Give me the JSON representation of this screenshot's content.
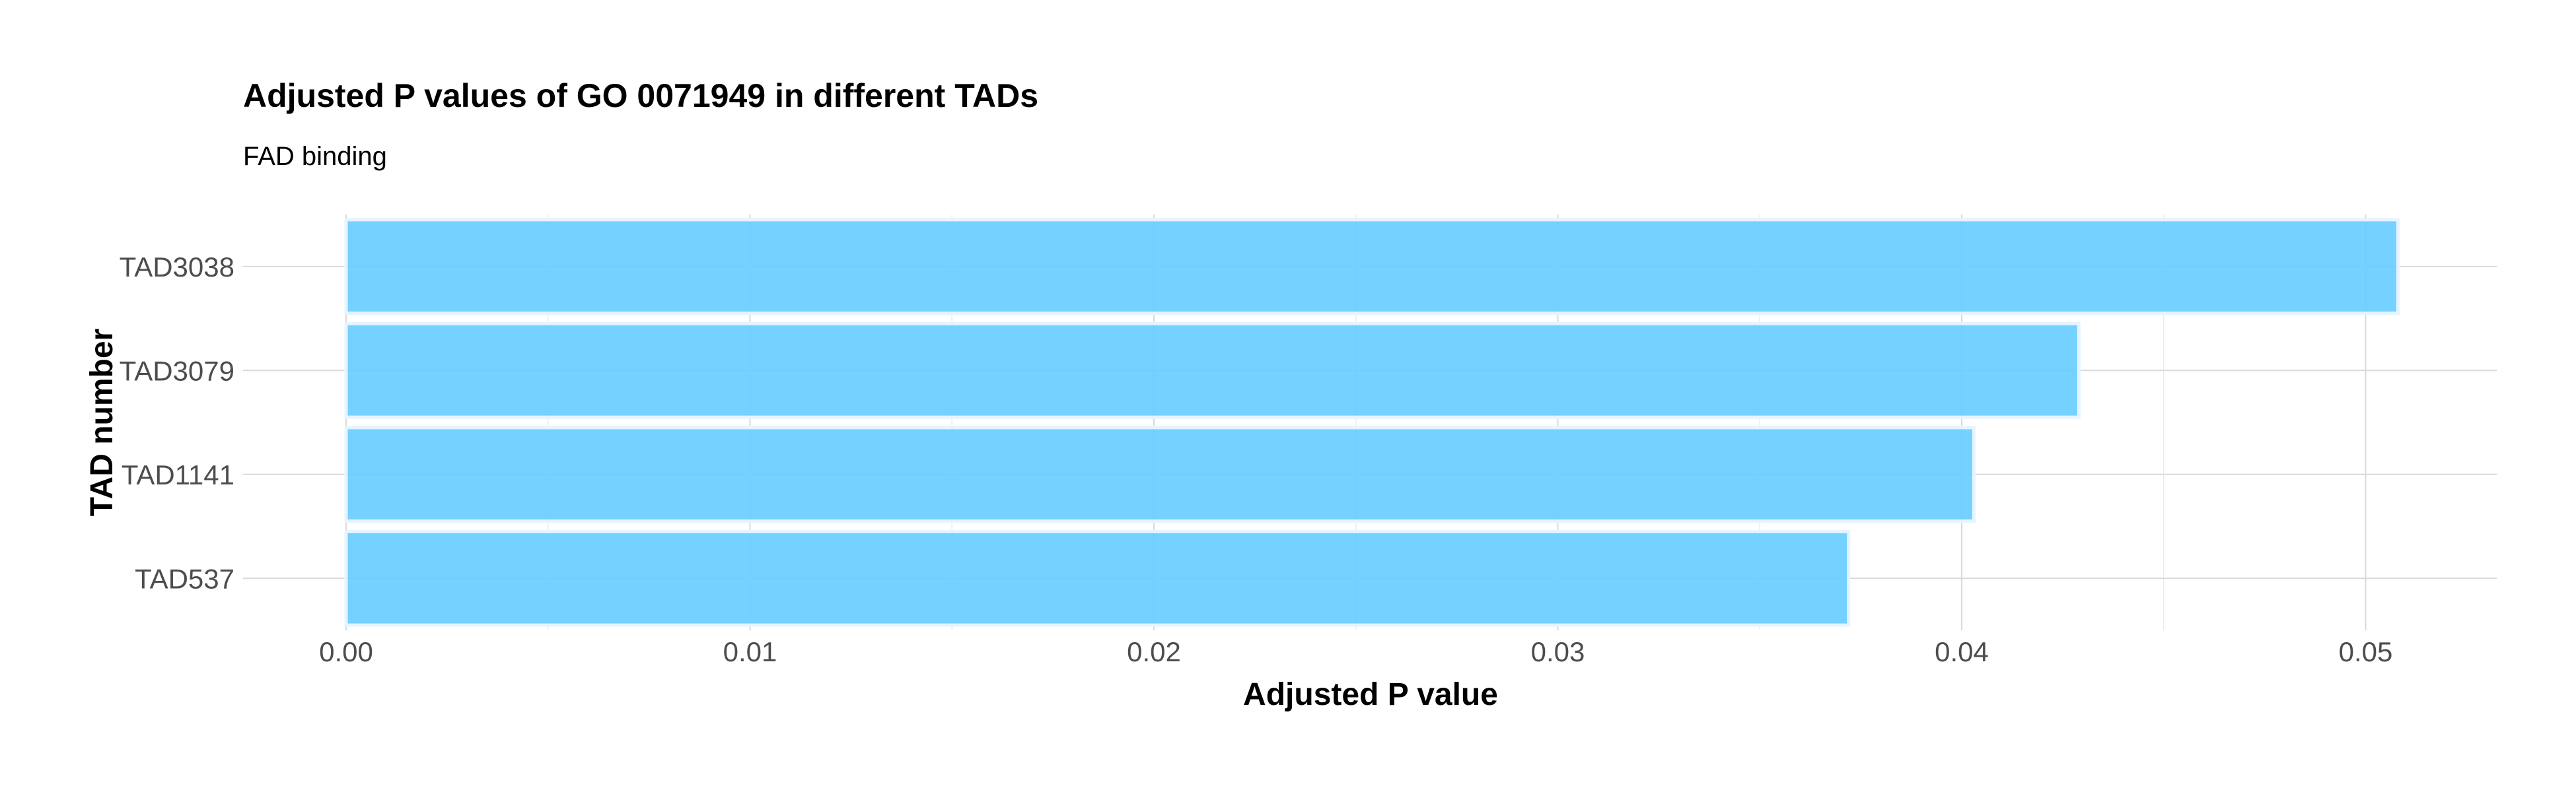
{
  "chart_data": {
    "type": "bar",
    "orientation": "horizontal",
    "title": "Adjusted P values of GO 0071949 in different TADs",
    "subtitle": "FAD binding",
    "xlabel": "Adjusted P value",
    "ylabel": "TAD number",
    "categories": [
      "TAD3038",
      "TAD3079",
      "TAD1141",
      "TAD537"
    ],
    "values": [
      0.0508,
      0.0429,
      0.0403,
      0.0372
    ],
    "xlim": [
      0,
      0.0535
    ],
    "xticks": [
      0.0,
      0.01,
      0.02,
      0.03,
      0.04,
      0.05
    ],
    "xtick_labels": [
      "0.00",
      "0.01",
      "0.02",
      "0.03",
      "0.04",
      "0.05"
    ],
    "grid": true,
    "bar_color": "#66CCFF",
    "bar_outline": "#e6f4ff"
  }
}
